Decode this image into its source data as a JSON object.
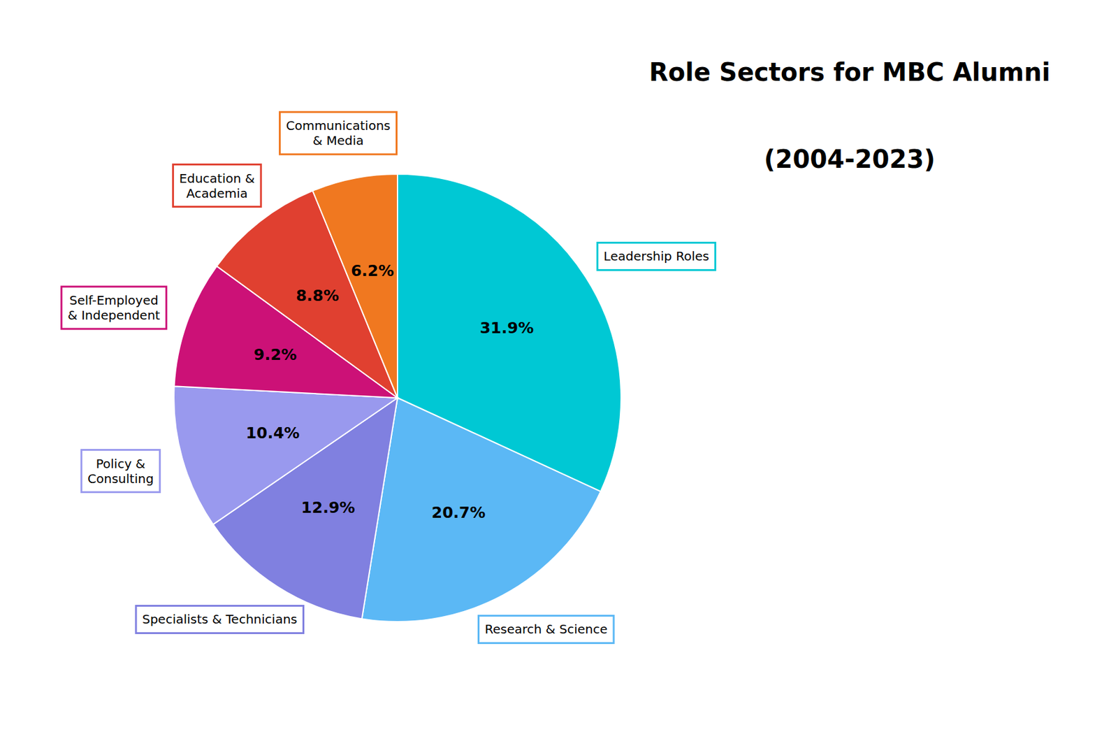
{
  "chart_data": {
    "type": "pie",
    "title": "Role Sectors for MBC Alumni",
    "subtitle": "(2004-2023)",
    "categories": [
      "Leadership Roles",
      "Research & Science",
      "Specialists & Technicians",
      "Policy &\nConsulting",
      "Self-Employed\n& Independent",
      "Education &\nAcademia",
      "Communications\n& Media"
    ],
    "values": [
      31.9,
      20.7,
      12.9,
      10.4,
      9.2,
      8.8,
      6.2
    ],
    "value_labels": [
      "31.9%",
      "20.7%",
      "12.9%",
      "10.4%",
      "9.2%",
      "8.8%",
      "6.2%"
    ],
    "colors": [
      "#00C8D4",
      "#5BB8F5",
      "#8080E0",
      "#9999EE",
      "#CC1177",
      "#E04030",
      "#F07820"
    ],
    "data_labels": true
  }
}
